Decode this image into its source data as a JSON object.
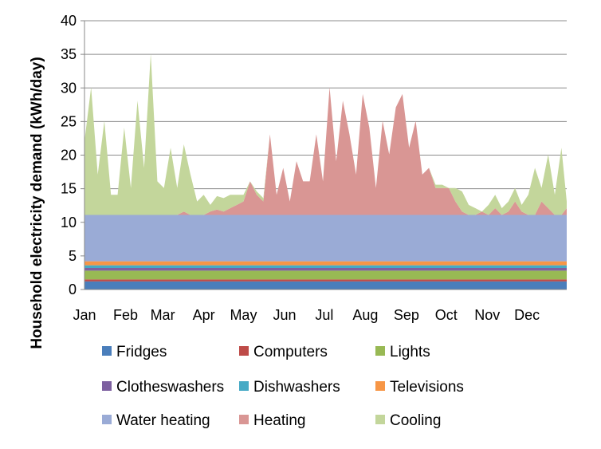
{
  "chart_data": {
    "type": "area",
    "stacked": true,
    "title": "",
    "xlabel": "",
    "ylabel": "Household electricity demand (kWh/day)",
    "ylim": [
      0,
      40
    ],
    "yticks": [
      0,
      5,
      10,
      15,
      20,
      25,
      30,
      35,
      40
    ],
    "grid": "horizontal",
    "legend_position": "bottom",
    "month_labels": [
      "Jan",
      "Feb",
      "Mar",
      "Apr",
      "May",
      "Jun",
      "Jul",
      "Aug",
      "Sep",
      "Oct",
      "Nov",
      "Dec"
    ],
    "day_of_year": [
      1,
      6,
      11,
      16,
      21,
      26,
      31,
      36,
      41,
      46,
      51,
      56,
      61,
      66,
      71,
      76,
      81,
      86,
      91,
      96,
      101,
      106,
      111,
      116,
      121,
      126,
      131,
      136,
      141,
      146,
      151,
      156,
      161,
      166,
      171,
      176,
      181,
      186,
      191,
      196,
      201,
      206,
      211,
      216,
      221,
      226,
      231,
      236,
      241,
      246,
      251,
      256,
      261,
      266,
      271,
      276,
      281,
      286,
      291,
      296,
      301,
      306,
      311,
      316,
      321,
      326,
      331,
      336,
      341,
      346,
      351,
      356,
      361,
      365
    ],
    "series": [
      {
        "name": "Fridges",
        "color": "#4a7ebb",
        "values": [
          1.2,
          1.2,
          1.2,
          1.2,
          1.2,
          1.2,
          1.2,
          1.2,
          1.2,
          1.2,
          1.2,
          1.2,
          1.2,
          1.2,
          1.2,
          1.2,
          1.2,
          1.2,
          1.2,
          1.2,
          1.2,
          1.2,
          1.2,
          1.2,
          1.2,
          1.2,
          1.2,
          1.2,
          1.2,
          1.2,
          1.2,
          1.2,
          1.2,
          1.2,
          1.2,
          1.2,
          1.2,
          1.2,
          1.2,
          1.2,
          1.2,
          1.2,
          1.2,
          1.2,
          1.2,
          1.2,
          1.2,
          1.2,
          1.2,
          1.2,
          1.2,
          1.2,
          1.2,
          1.2,
          1.2,
          1.2,
          1.2,
          1.2,
          1.2,
          1.2,
          1.2,
          1.2,
          1.2,
          1.2,
          1.2,
          1.2,
          1.2,
          1.2,
          1.2,
          1.2,
          1.2,
          1.2,
          1.2,
          1.2
        ]
      },
      {
        "name": "Computers",
        "color": "#be4b48",
        "values": [
          0.3,
          0.3,
          0.3,
          0.3,
          0.3,
          0.3,
          0.3,
          0.3,
          0.3,
          0.3,
          0.3,
          0.3,
          0.3,
          0.3,
          0.3,
          0.3,
          0.3,
          0.3,
          0.3,
          0.3,
          0.3,
          0.3,
          0.3,
          0.3,
          0.3,
          0.3,
          0.3,
          0.3,
          0.3,
          0.3,
          0.3,
          0.3,
          0.3,
          0.3,
          0.3,
          0.3,
          0.3,
          0.3,
          0.3,
          0.3,
          0.3,
          0.3,
          0.3,
          0.3,
          0.3,
          0.3,
          0.3,
          0.3,
          0.3,
          0.3,
          0.3,
          0.3,
          0.3,
          0.3,
          0.3,
          0.3,
          0.3,
          0.3,
          0.3,
          0.3,
          0.3,
          0.3,
          0.3,
          0.3,
          0.3,
          0.3,
          0.3,
          0.3,
          0.3,
          0.3,
          0.3,
          0.3,
          0.3,
          0.3
        ]
      },
      {
        "name": "Lights",
        "color": "#98b954",
        "values": [
          1.3,
          1.3,
          1.3,
          1.3,
          1.3,
          1.3,
          1.3,
          1.3,
          1.3,
          1.3,
          1.3,
          1.3,
          1.3,
          1.3,
          1.3,
          1.3,
          1.3,
          1.3,
          1.3,
          1.3,
          1.3,
          1.3,
          1.3,
          1.3,
          1.3,
          1.3,
          1.3,
          1.3,
          1.3,
          1.3,
          1.3,
          1.3,
          1.3,
          1.3,
          1.3,
          1.3,
          1.3,
          1.3,
          1.3,
          1.3,
          1.3,
          1.3,
          1.3,
          1.3,
          1.3,
          1.3,
          1.3,
          1.3,
          1.3,
          1.3,
          1.3,
          1.3,
          1.3,
          1.3,
          1.3,
          1.3,
          1.3,
          1.3,
          1.3,
          1.3,
          1.3,
          1.3,
          1.3,
          1.3,
          1.3,
          1.3,
          1.3,
          1.3,
          1.3,
          1.3,
          1.3,
          1.3,
          1.3,
          1.3
        ]
      },
      {
        "name": "Clotheswashers",
        "color": "#7d60a0",
        "values": [
          0.4,
          0.4,
          0.4,
          0.4,
          0.4,
          0.4,
          0.4,
          0.4,
          0.4,
          0.4,
          0.4,
          0.4,
          0.4,
          0.4,
          0.4,
          0.4,
          0.4,
          0.4,
          0.4,
          0.4,
          0.4,
          0.4,
          0.4,
          0.4,
          0.4,
          0.4,
          0.4,
          0.4,
          0.4,
          0.4,
          0.4,
          0.4,
          0.4,
          0.4,
          0.4,
          0.4,
          0.4,
          0.4,
          0.4,
          0.4,
          0.4,
          0.4,
          0.4,
          0.4,
          0.4,
          0.4,
          0.4,
          0.4,
          0.4,
          0.4,
          0.4,
          0.4,
          0.4,
          0.4,
          0.4,
          0.4,
          0.4,
          0.4,
          0.4,
          0.4,
          0.4,
          0.4,
          0.4,
          0.4,
          0.4,
          0.4,
          0.4,
          0.4,
          0.4,
          0.4,
          0.4,
          0.4,
          0.4,
          0.4
        ]
      },
      {
        "name": "Dishwashers",
        "color": "#46aac5",
        "values": [
          0.4,
          0.4,
          0.4,
          0.4,
          0.4,
          0.4,
          0.4,
          0.4,
          0.4,
          0.4,
          0.4,
          0.4,
          0.4,
          0.4,
          0.4,
          0.4,
          0.4,
          0.4,
          0.4,
          0.4,
          0.4,
          0.4,
          0.4,
          0.4,
          0.4,
          0.4,
          0.4,
          0.4,
          0.4,
          0.4,
          0.4,
          0.4,
          0.4,
          0.4,
          0.4,
          0.4,
          0.4,
          0.4,
          0.4,
          0.4,
          0.4,
          0.4,
          0.4,
          0.4,
          0.4,
          0.4,
          0.4,
          0.4,
          0.4,
          0.4,
          0.4,
          0.4,
          0.4,
          0.4,
          0.4,
          0.4,
          0.4,
          0.4,
          0.4,
          0.4,
          0.4,
          0.4,
          0.4,
          0.4,
          0.4,
          0.4,
          0.4,
          0.4,
          0.4,
          0.4,
          0.4,
          0.4,
          0.4,
          0.4
        ]
      },
      {
        "name": "Televisions",
        "color": "#f79646",
        "values": [
          0.6,
          0.6,
          0.6,
          0.6,
          0.6,
          0.6,
          0.6,
          0.6,
          0.6,
          0.6,
          0.6,
          0.6,
          0.6,
          0.6,
          0.6,
          0.6,
          0.6,
          0.6,
          0.6,
          0.6,
          0.6,
          0.6,
          0.6,
          0.6,
          0.6,
          0.6,
          0.6,
          0.6,
          0.6,
          0.6,
          0.6,
          0.6,
          0.6,
          0.6,
          0.6,
          0.6,
          0.6,
          0.6,
          0.6,
          0.6,
          0.6,
          0.6,
          0.6,
          0.6,
          0.6,
          0.6,
          0.6,
          0.6,
          0.6,
          0.6,
          0.6,
          0.6,
          0.6,
          0.6,
          0.6,
          0.6,
          0.6,
          0.6,
          0.6,
          0.6,
          0.6,
          0.6,
          0.6,
          0.6,
          0.6,
          0.6,
          0.6,
          0.6,
          0.6,
          0.6,
          0.6,
          0.6,
          0.6,
          0.6
        ]
      },
      {
        "name": "Water heating",
        "color": "#9aabd6",
        "values": [
          6.9,
          6.9,
          6.9,
          6.9,
          6.9,
          6.9,
          6.9,
          6.9,
          6.9,
          6.9,
          6.9,
          6.9,
          6.9,
          6.9,
          6.9,
          6.9,
          6.9,
          6.9,
          6.9,
          6.9,
          6.9,
          6.9,
          6.9,
          6.9,
          6.9,
          6.9,
          6.9,
          6.9,
          6.9,
          6.9,
          6.9,
          6.9,
          6.9,
          6.9,
          6.9,
          6.9,
          6.9,
          6.9,
          6.9,
          6.9,
          6.9,
          6.9,
          6.9,
          6.9,
          6.9,
          6.9,
          6.9,
          6.9,
          6.9,
          6.9,
          6.9,
          6.9,
          6.9,
          6.9,
          6.9,
          6.9,
          6.9,
          6.9,
          6.9,
          6.9,
          6.9,
          6.9,
          6.9,
          6.9,
          6.9,
          6.9,
          6.9,
          6.9,
          6.9,
          6.9,
          6.9,
          6.9,
          6.9,
          6.9
        ]
      },
      {
        "name": "Heating",
        "color": "#d99694",
        "values": [
          0,
          0,
          0,
          0,
          0,
          0,
          0,
          0,
          0,
          0,
          0,
          0,
          0,
          0,
          0,
          0.5,
          0,
          0,
          0,
          0.5,
          0.8,
          0.5,
          1,
          1.5,
          2,
          5,
          3,
          2,
          12,
          3,
          7,
          2,
          8,
          5,
          5,
          12,
          5,
          19,
          8,
          17,
          12,
          6,
          18,
          13,
          4,
          14,
          9,
          16,
          18,
          10,
          14,
          6,
          7,
          4,
          4,
          4,
          2,
          0.5,
          0,
          0,
          0.5,
          0,
          1,
          0,
          0.5,
          2,
          0.5,
          0,
          0,
          2,
          1,
          0,
          0,
          1
        ]
      },
      {
        "name": "Cooling",
        "color": "#c3d69b",
        "values": [
          11,
          19,
          6,
          14,
          3,
          3,
          13,
          4,
          17,
          7,
          24,
          5,
          4,
          10,
          4,
          10,
          6,
          2,
          3,
          1,
          2,
          2,
          2,
          1.5,
          1,
          0,
          0.5,
          0.5,
          0,
          0,
          0,
          0,
          0,
          0,
          0,
          0,
          0,
          0,
          0,
          0,
          0,
          0,
          0,
          0,
          0,
          0,
          0,
          0,
          0,
          0,
          0,
          0,
          0,
          0.5,
          0.5,
          0,
          2,
          3,
          1.5,
          1,
          0,
          1.5,
          2,
          1,
          1.5,
          2,
          1,
          3,
          7,
          2,
          8,
          3,
          10,
          1
        ]
      }
    ]
  }
}
